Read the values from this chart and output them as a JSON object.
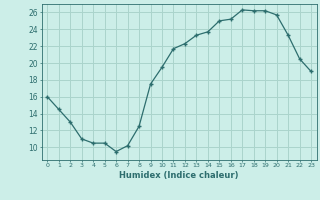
{
  "x": [
    0,
    1,
    2,
    3,
    4,
    5,
    6,
    7,
    8,
    9,
    10,
    11,
    12,
    13,
    14,
    15,
    16,
    17,
    18,
    19,
    20,
    21,
    22,
    23
  ],
  "y": [
    16,
    14.5,
    13,
    11,
    10.5,
    10.5,
    9.5,
    10.2,
    12.5,
    17.5,
    19.5,
    21.7,
    22.3,
    23.3,
    23.7,
    25.0,
    25.2,
    26.3,
    26.2,
    26.2,
    25.7,
    23.3,
    20.5,
    19.0
  ],
  "xlabel": "Humidex (Indice chaleur)",
  "xlim": [
    -0.5,
    23.5
  ],
  "ylim": [
    8.5,
    27.0
  ],
  "yticks": [
    10,
    12,
    14,
    16,
    18,
    20,
    22,
    24,
    26
  ],
  "xticks": [
    0,
    1,
    2,
    3,
    4,
    5,
    6,
    7,
    8,
    9,
    10,
    11,
    12,
    13,
    14,
    15,
    16,
    17,
    18,
    19,
    20,
    21,
    22,
    23
  ],
  "line_color": "#2d6e6e",
  "marker_color": "#2d6e6e",
  "bg_color": "#cceee8",
  "grid_color": "#aad4cc",
  "axes_color": "#2d6e6e",
  "tick_color": "#2d6e6e",
  "label_color": "#2d6e6e"
}
